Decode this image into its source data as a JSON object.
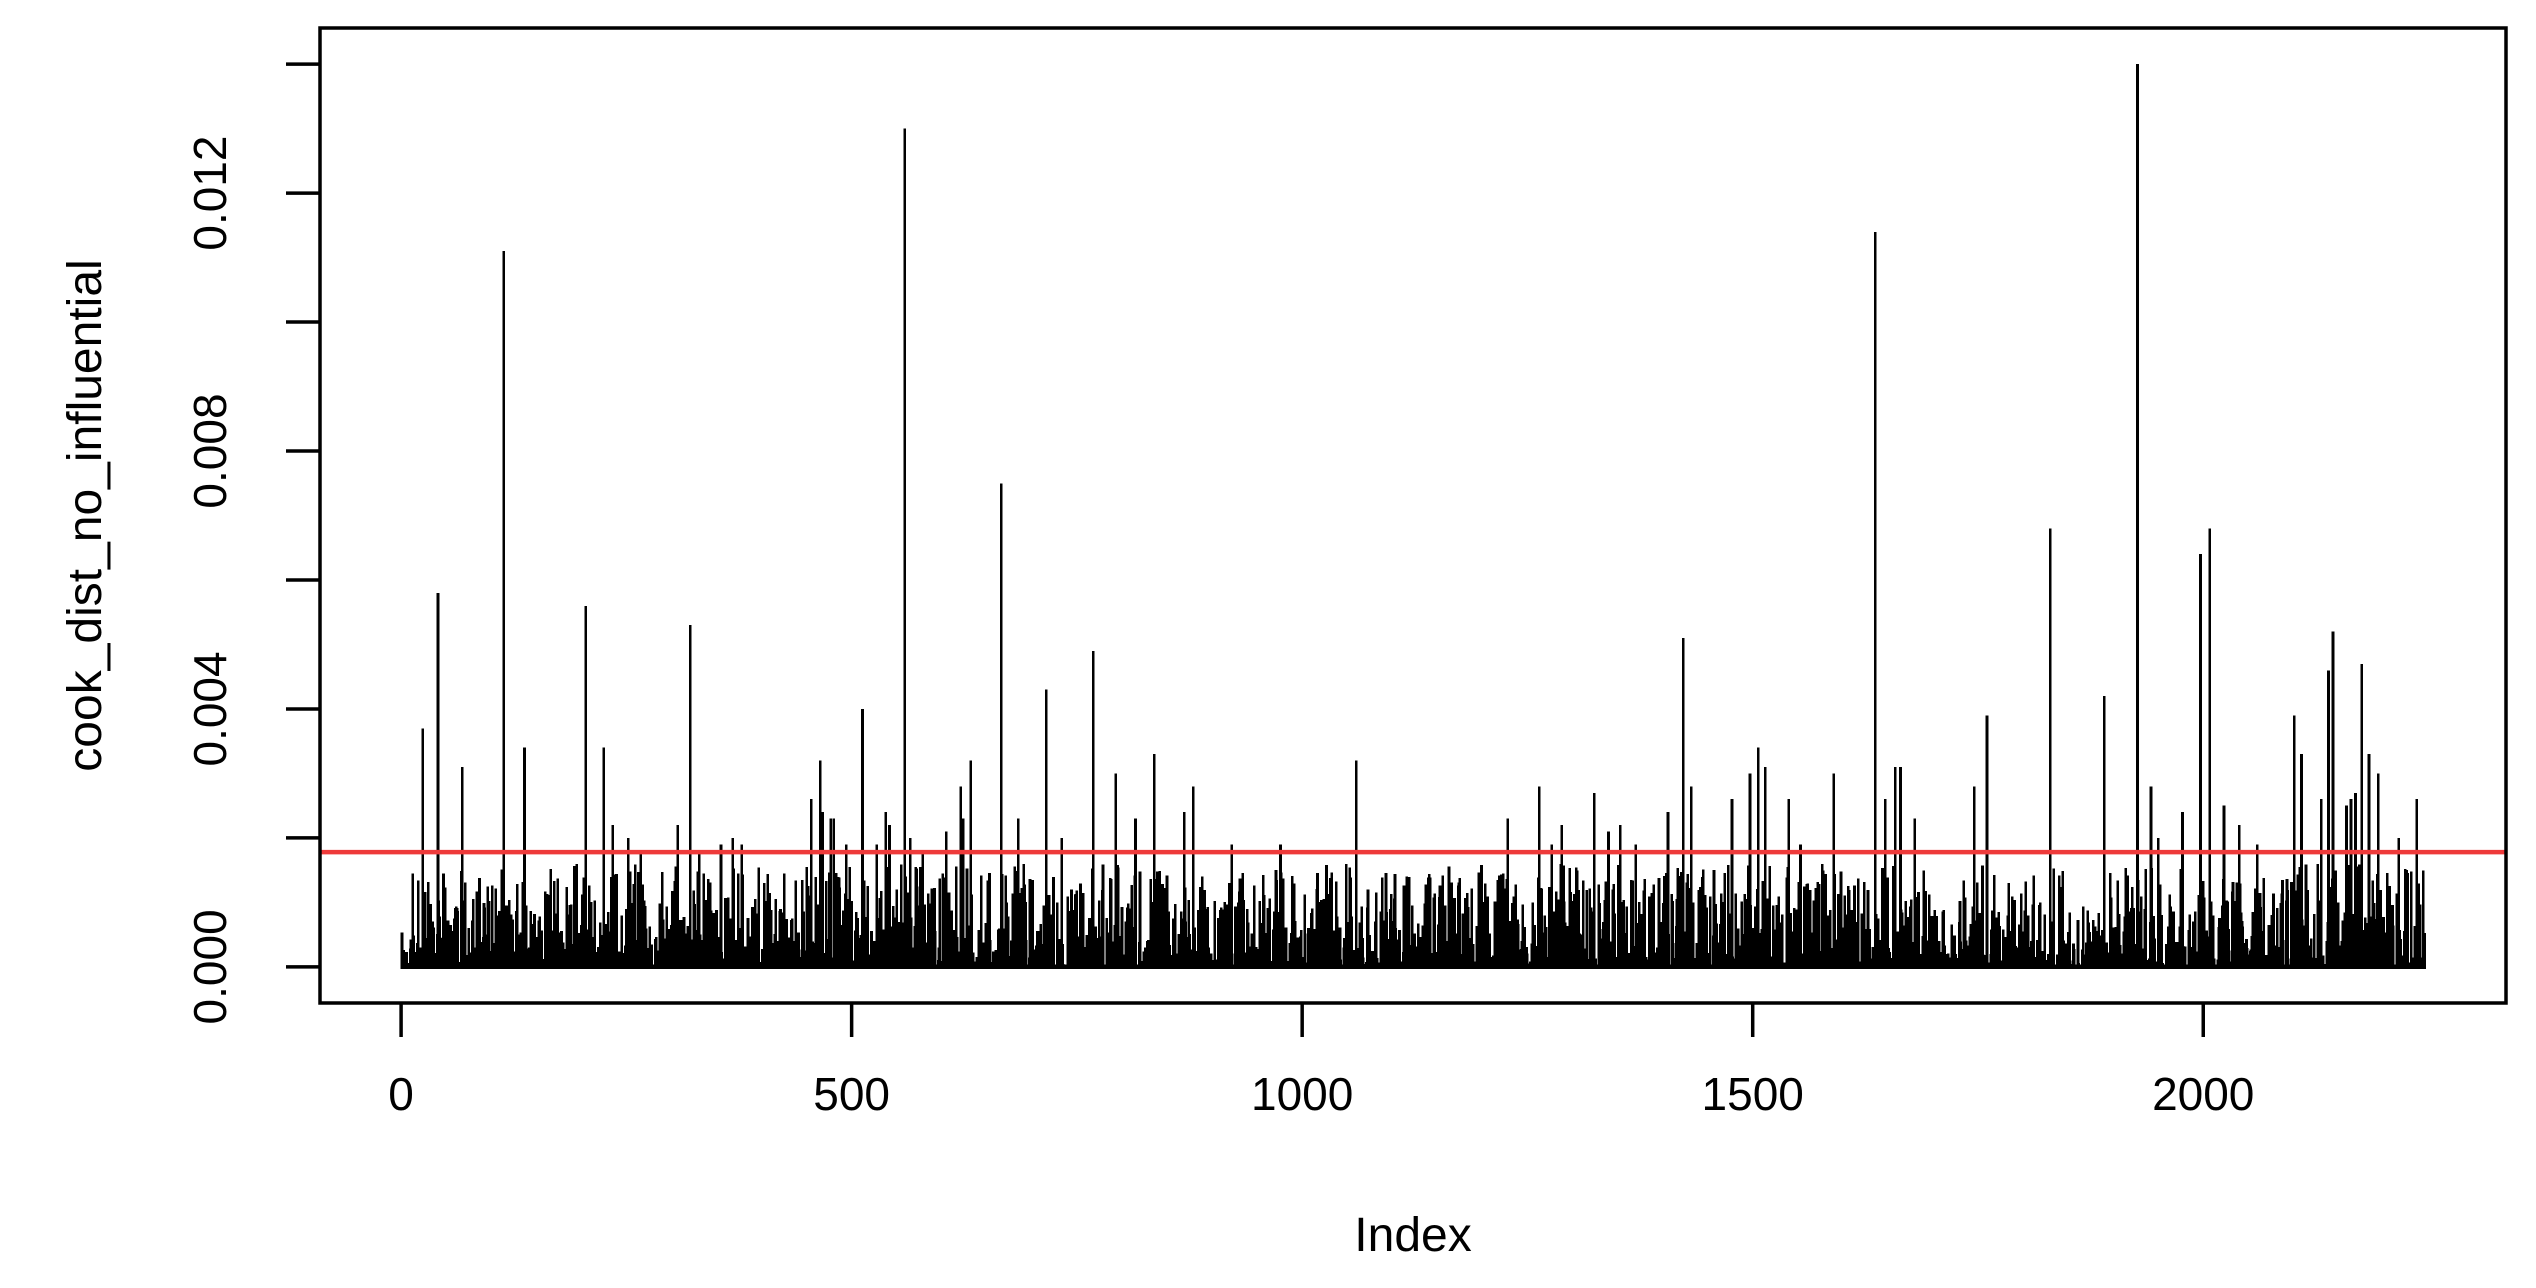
{
  "chart_data": {
    "type": "bar",
    "subtype": "vertical-spike-plot (R type='h')",
    "title": "",
    "xlabel": "Index",
    "ylabel": "cook_dist_no_influential",
    "x_ticks": [
      0,
      500,
      1000,
      1500,
      2000
    ],
    "y_ticks": [
      {
        "value": 0.0,
        "label": "0.000"
      },
      {
        "value": 0.002,
        "label": ""
      },
      {
        "value": 0.004,
        "label": "0.004"
      },
      {
        "value": 0.006,
        "label": ""
      },
      {
        "value": 0.008,
        "label": "0.008"
      },
      {
        "value": 0.01,
        "label": ""
      },
      {
        "value": 0.012,
        "label": "0.012"
      },
      {
        "value": 0.014,
        "label": ""
      }
    ],
    "xlim": [
      -90,
      2336
    ],
    "ylim": [
      -0.00056,
      0.01456
    ],
    "n_points": 2246,
    "max_value": 0.014,
    "grid": false,
    "legend": null,
    "threshold_line": {
      "value": 0.00178,
      "color": "#ee3a3a"
    },
    "colors": {
      "bars": "#000000",
      "frame": "#000000",
      "text": "#000000",
      "background": "#ffffff"
    },
    "peaks": [
      [
        24,
        0.0037
      ],
      [
        41,
        0.0058
      ],
      [
        68,
        0.0031
      ],
      [
        114,
        0.0111
      ],
      [
        137,
        0.0034
      ],
      [
        205,
        0.0056
      ],
      [
        225,
        0.0034
      ],
      [
        235,
        0.0022
      ],
      [
        252,
        0.002
      ],
      [
        266,
        0.0018
      ],
      [
        307,
        0.0022
      ],
      [
        321,
        0.0053
      ],
      [
        331,
        0.0018
      ],
      [
        355,
        0.0019
      ],
      [
        368,
        0.002
      ],
      [
        378,
        0.0019
      ],
      [
        455,
        0.0026
      ],
      [
        465,
        0.0032
      ],
      [
        468,
        0.0024
      ],
      [
        477,
        0.0023
      ],
      [
        480,
        0.0023
      ],
      [
        494,
        0.0019
      ],
      [
        512,
        0.004
      ],
      [
        528,
        0.0019
      ],
      [
        538,
        0.0024
      ],
      [
        542,
        0.0022
      ],
      [
        559,
        0.013
      ],
      [
        565,
        0.002
      ],
      [
        579,
        0.0018
      ],
      [
        605,
        0.0021
      ],
      [
        621,
        0.0028
      ],
      [
        624,
        0.0023
      ],
      [
        632,
        0.0032
      ],
      [
        666,
        0.0075
      ],
      [
        685,
        0.0023
      ],
      [
        716,
        0.0043
      ],
      [
        733,
        0.002
      ],
      [
        768,
        0.0049
      ],
      [
        793,
        0.003
      ],
      [
        815,
        0.0023
      ],
      [
        836,
        0.0033
      ],
      [
        869,
        0.0024
      ],
      [
        879,
        0.0028
      ],
      [
        922,
        0.0019
      ],
      [
        976,
        0.0019
      ],
      [
        1060,
        0.0032
      ],
      [
        1228,
        0.0023
      ],
      [
        1263,
        0.0028
      ],
      [
        1277,
        0.0019
      ],
      [
        1288,
        0.0022
      ],
      [
        1324,
        0.0027
      ],
      [
        1340,
        0.0021
      ],
      [
        1353,
        0.0022
      ],
      [
        1370,
        0.0019
      ],
      [
        1406,
        0.0024
      ],
      [
        1423,
        0.0051
      ],
      [
        1432,
        0.0028
      ],
      [
        1477,
        0.0026
      ],
      [
        1497,
        0.003
      ],
      [
        1506,
        0.0034
      ],
      [
        1514,
        0.0031
      ],
      [
        1540,
        0.0026
      ],
      [
        1553,
        0.0019
      ],
      [
        1590,
        0.003
      ],
      [
        1636,
        0.0114
      ],
      [
        1647,
        0.0026
      ],
      [
        1658,
        0.0031
      ],
      [
        1664,
        0.0031
      ],
      [
        1680,
        0.0023
      ],
      [
        1746,
        0.0028
      ],
      [
        1760,
        0.0039
      ],
      [
        1830,
        0.0068
      ],
      [
        1890,
        0.0042
      ],
      [
        1927,
        0.014
      ],
      [
        1942,
        0.0028
      ],
      [
        1950,
        0.002
      ],
      [
        1977,
        0.0024
      ],
      [
        1997,
        0.0064
      ],
      [
        2007,
        0.0068
      ],
      [
        2023,
        0.0025
      ],
      [
        2040,
        0.0022
      ],
      [
        2060,
        0.0019
      ],
      [
        2101,
        0.0039
      ],
      [
        2109,
        0.0033
      ],
      [
        2131,
        0.0026
      ],
      [
        2139,
        0.0046
      ],
      [
        2144,
        0.0052
      ],
      [
        2159,
        0.0025
      ],
      [
        2164,
        0.0026
      ],
      [
        2169,
        0.0027
      ],
      [
        2176,
        0.0047
      ],
      [
        2184,
        0.0033
      ],
      [
        2194,
        0.003
      ],
      [
        2217,
        0.002
      ],
      [
        2237,
        0.0026
      ]
    ],
    "baseline_noise": {
      "seed": 1234567,
      "count": 2246,
      "scale": 0.0016,
      "exponent": 2.2
    }
  },
  "layout_note": "single R plot, no other UI chrome"
}
